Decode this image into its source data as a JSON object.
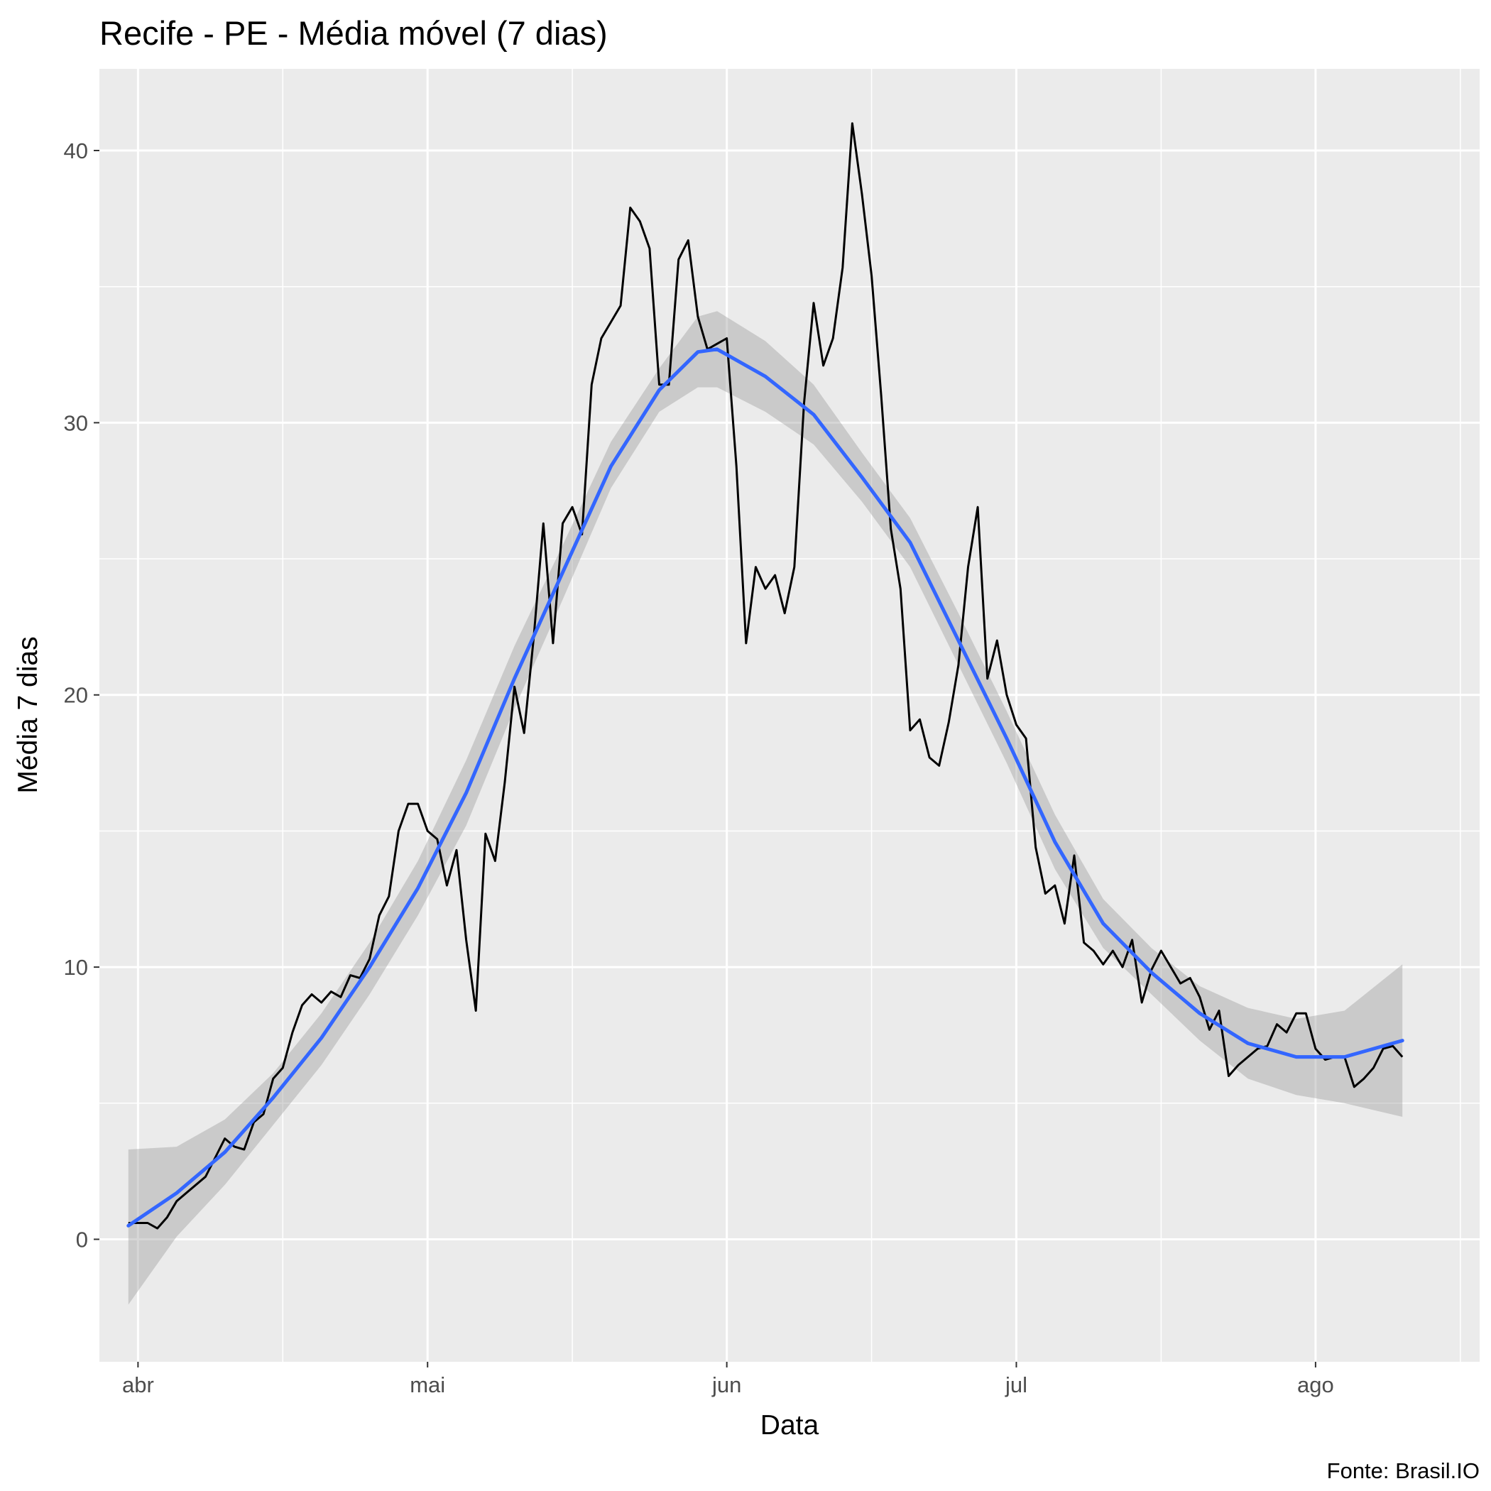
{
  "chart_data": {
    "type": "line",
    "title": "Recife - PE - Média móvel (7 dias)",
    "xlabel": "Data",
    "ylabel": "Média 7 dias",
    "caption": "Fonte: Brasil.IO",
    "xlim": [
      "2020-03-28",
      "2020-08-18"
    ],
    "ylim": [
      -4.5,
      43
    ],
    "x_ticks": [
      {
        "date": "2020-04-01",
        "label": "abr"
      },
      {
        "date": "2020-05-01",
        "label": "mai"
      },
      {
        "date": "2020-06-01",
        "label": "jun"
      },
      {
        "date": "2020-07-01",
        "label": "jul"
      },
      {
        "date": "2020-08-01",
        "label": "ago"
      }
    ],
    "x_minor_ticks": [
      "2020-04-16",
      "2020-05-16",
      "2020-06-16",
      "2020-07-16",
      "2020-08-16"
    ],
    "y_ticks": [
      0,
      10,
      20,
      30,
      40
    ],
    "y_minor_ticks": [
      5,
      15,
      25,
      35
    ],
    "panel_background": "#ebebeb",
    "grid_color": "#ffffff",
    "series": [
      {
        "kind": "line",
        "color": "#000000",
        "points": [
          [
            "2020-03-31",
            0.6
          ],
          [
            "2020-04-01",
            0.6
          ],
          [
            "2020-04-02",
            0.6
          ],
          [
            "2020-04-03",
            0.4
          ],
          [
            "2020-04-04",
            0.8
          ],
          [
            "2020-04-05",
            1.4
          ],
          [
            "2020-04-06",
            1.7
          ],
          [
            "2020-04-07",
            2.0
          ],
          [
            "2020-04-08",
            2.3
          ],
          [
            "2020-04-09",
            3.0
          ],
          [
            "2020-04-10",
            3.7
          ],
          [
            "2020-04-11",
            3.4
          ],
          [
            "2020-04-12",
            3.3
          ],
          [
            "2020-04-13",
            4.3
          ],
          [
            "2020-04-14",
            4.6
          ],
          [
            "2020-04-15",
            5.9
          ],
          [
            "2020-04-16",
            6.3
          ],
          [
            "2020-04-17",
            7.6
          ],
          [
            "2020-04-18",
            8.6
          ],
          [
            "2020-04-19",
            9.0
          ],
          [
            "2020-04-20",
            8.7
          ],
          [
            "2020-04-21",
            9.1
          ],
          [
            "2020-04-22",
            8.9
          ],
          [
            "2020-04-23",
            9.7
          ],
          [
            "2020-04-24",
            9.6
          ],
          [
            "2020-04-25",
            10.3
          ],
          [
            "2020-04-26",
            11.9
          ],
          [
            "2020-04-27",
            12.6
          ],
          [
            "2020-04-28",
            15.0
          ],
          [
            "2020-04-29",
            16.0
          ],
          [
            "2020-04-30",
            16.0
          ],
          [
            "2020-05-01",
            15.0
          ],
          [
            "2020-05-02",
            14.7
          ],
          [
            "2020-05-03",
            13.0
          ],
          [
            "2020-05-04",
            14.3
          ],
          [
            "2020-05-05",
            11.0
          ],
          [
            "2020-05-06",
            8.4
          ],
          [
            "2020-05-07",
            14.9
          ],
          [
            "2020-05-08",
            13.9
          ],
          [
            "2020-05-09",
            16.8
          ],
          [
            "2020-05-10",
            20.3
          ],
          [
            "2020-05-11",
            18.6
          ],
          [
            "2020-05-12",
            22.1
          ],
          [
            "2020-05-13",
            26.3
          ],
          [
            "2020-05-14",
            21.9
          ],
          [
            "2020-05-15",
            26.3
          ],
          [
            "2020-05-16",
            26.9
          ],
          [
            "2020-05-17",
            25.9
          ],
          [
            "2020-05-18",
            31.4
          ],
          [
            "2020-05-19",
            33.1
          ],
          [
            "2020-05-20",
            33.7
          ],
          [
            "2020-05-21",
            34.3
          ],
          [
            "2020-05-22",
            37.9
          ],
          [
            "2020-05-23",
            37.4
          ],
          [
            "2020-05-24",
            36.4
          ],
          [
            "2020-05-25",
            31.4
          ],
          [
            "2020-05-26",
            31.4
          ],
          [
            "2020-05-27",
            36.0
          ],
          [
            "2020-05-28",
            36.7
          ],
          [
            "2020-05-29",
            33.9
          ],
          [
            "2020-05-30",
            32.7
          ],
          [
            "2020-05-31",
            32.9
          ],
          [
            "2020-06-01",
            33.1
          ],
          [
            "2020-06-02",
            28.4
          ],
          [
            "2020-06-03",
            21.9
          ],
          [
            "2020-06-04",
            24.7
          ],
          [
            "2020-06-05",
            23.9
          ],
          [
            "2020-06-06",
            24.4
          ],
          [
            "2020-06-07",
            23.0
          ],
          [
            "2020-06-08",
            24.7
          ],
          [
            "2020-06-09",
            30.7
          ],
          [
            "2020-06-10",
            34.4
          ],
          [
            "2020-06-11",
            32.1
          ],
          [
            "2020-06-12",
            33.1
          ],
          [
            "2020-06-13",
            35.7
          ],
          [
            "2020-06-14",
            41.0
          ],
          [
            "2020-06-15",
            38.4
          ],
          [
            "2020-06-16",
            35.4
          ],
          [
            "2020-06-17",
            31.0
          ],
          [
            "2020-06-18",
            26.1
          ],
          [
            "2020-06-19",
            23.9
          ],
          [
            "2020-06-20",
            18.7
          ],
          [
            "2020-06-21",
            19.1
          ],
          [
            "2020-06-22",
            17.7
          ],
          [
            "2020-06-23",
            17.4
          ],
          [
            "2020-06-24",
            19.0
          ],
          [
            "2020-06-25",
            21.1
          ],
          [
            "2020-06-26",
            24.7
          ],
          [
            "2020-06-27",
            26.9
          ],
          [
            "2020-06-28",
            20.6
          ],
          [
            "2020-06-29",
            22.0
          ],
          [
            "2020-06-30",
            20.0
          ],
          [
            "2020-07-01",
            18.9
          ],
          [
            "2020-07-02",
            18.4
          ],
          [
            "2020-07-03",
            14.4
          ],
          [
            "2020-07-04",
            12.7
          ],
          [
            "2020-07-05",
            13.0
          ],
          [
            "2020-07-06",
            11.6
          ],
          [
            "2020-07-07",
            14.1
          ],
          [
            "2020-07-08",
            10.9
          ],
          [
            "2020-07-09",
            10.6
          ],
          [
            "2020-07-10",
            10.1
          ],
          [
            "2020-07-11",
            10.6
          ],
          [
            "2020-07-12",
            10.0
          ],
          [
            "2020-07-13",
            11.0
          ],
          [
            "2020-07-14",
            8.7
          ],
          [
            "2020-07-15",
            9.9
          ],
          [
            "2020-07-16",
            10.6
          ],
          [
            "2020-07-17",
            10.0
          ],
          [
            "2020-07-18",
            9.4
          ],
          [
            "2020-07-19",
            9.6
          ],
          [
            "2020-07-20",
            8.9
          ],
          [
            "2020-07-21",
            7.7
          ],
          [
            "2020-07-22",
            8.4
          ],
          [
            "2020-07-23",
            6.0
          ],
          [
            "2020-07-24",
            6.4
          ],
          [
            "2020-07-25",
            6.7
          ],
          [
            "2020-07-26",
            7.0
          ],
          [
            "2020-07-27",
            7.1
          ],
          [
            "2020-07-28",
            7.9
          ],
          [
            "2020-07-29",
            7.6
          ],
          [
            "2020-07-30",
            8.3
          ],
          [
            "2020-07-31",
            8.3
          ],
          [
            "2020-08-01",
            7.0
          ],
          [
            "2020-08-02",
            6.6
          ],
          [
            "2020-08-03",
            6.7
          ],
          [
            "2020-08-04",
            6.7
          ],
          [
            "2020-08-05",
            5.6
          ],
          [
            "2020-08-06",
            5.9
          ],
          [
            "2020-08-07",
            6.3
          ],
          [
            "2020-08-08",
            7.0
          ],
          [
            "2020-08-09",
            7.1
          ],
          [
            "2020-08-10",
            6.7
          ]
        ]
      },
      {
        "kind": "smooth",
        "color": "#3366ff",
        "ribbon_color": "#999999",
        "points": [
          [
            "2020-03-31",
            0.5,
            -2.4,
            3.3
          ],
          [
            "2020-04-05",
            1.7,
            0.1,
            3.4
          ],
          [
            "2020-04-10",
            3.2,
            2.0,
            4.4
          ],
          [
            "2020-04-15",
            5.2,
            4.2,
            6.1
          ],
          [
            "2020-04-20",
            7.4,
            6.4,
            8.3
          ],
          [
            "2020-04-25",
            10.0,
            9.0,
            10.9
          ],
          [
            "2020-04-30",
            12.9,
            11.9,
            13.9
          ],
          [
            "2020-05-05",
            16.4,
            15.2,
            17.6
          ],
          [
            "2020-05-10",
            20.6,
            19.5,
            21.8
          ],
          [
            "2020-05-15",
            24.5,
            23.5,
            25.5
          ],
          [
            "2020-05-20",
            28.4,
            27.6,
            29.3
          ],
          [
            "2020-05-25",
            31.2,
            30.4,
            32.0
          ],
          [
            "2020-05-29",
            32.6,
            31.3,
            33.9
          ],
          [
            "2020-05-31",
            32.7,
            31.3,
            34.1
          ],
          [
            "2020-06-05",
            31.7,
            30.4,
            33.0
          ],
          [
            "2020-06-10",
            30.3,
            29.2,
            31.4
          ],
          [
            "2020-06-15",
            28.0,
            27.1,
            28.9
          ],
          [
            "2020-06-20",
            25.6,
            24.7,
            26.5
          ],
          [
            "2020-06-25",
            22.0,
            21.1,
            23.0
          ],
          [
            "2020-06-30",
            18.4,
            17.5,
            19.4
          ],
          [
            "2020-07-05",
            14.6,
            13.6,
            15.6
          ],
          [
            "2020-07-10",
            11.6,
            10.7,
            12.5
          ],
          [
            "2020-07-15",
            9.8,
            9.0,
            10.7
          ],
          [
            "2020-07-20",
            8.3,
            7.3,
            9.3
          ],
          [
            "2020-07-25",
            7.2,
            5.9,
            8.5
          ],
          [
            "2020-07-30",
            6.7,
            5.3,
            8.1
          ],
          [
            "2020-08-04",
            6.7,
            5.0,
            8.4
          ],
          [
            "2020-08-10",
            7.3,
            4.5,
            10.1
          ]
        ]
      }
    ]
  }
}
